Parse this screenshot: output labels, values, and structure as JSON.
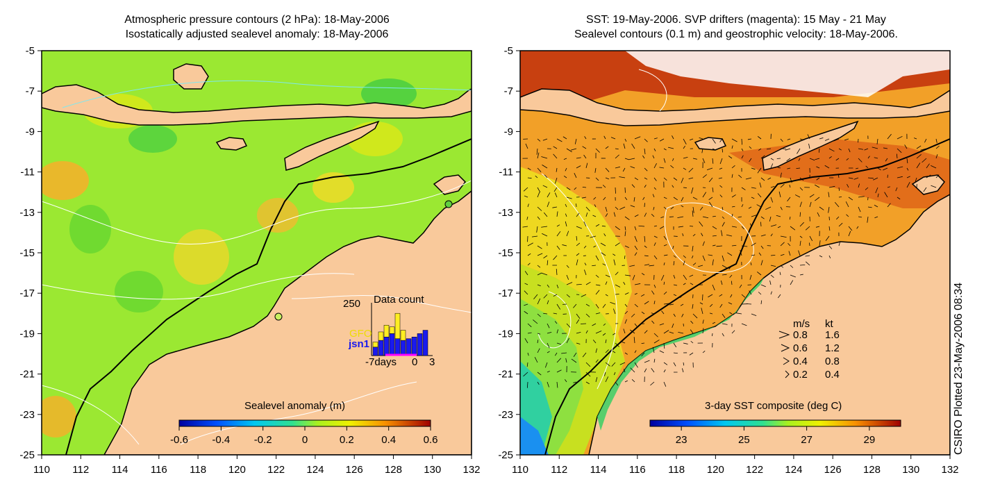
{
  "left_panel": {
    "title_line1": "Atmospheric pressure contours (2 hPa): 18-May-2006",
    "title_line2": "Isostatically adjusted sealevel anomaly: 18-May-2006",
    "x_ticks": [
      "110",
      "112",
      "114",
      "116",
      "118",
      "120",
      "122",
      "124",
      "126",
      "128",
      "130",
      "132"
    ],
    "y_ticks": [
      "-5",
      "-7",
      "-9",
      "-11",
      "-13",
      "-15",
      "-17",
      "-19",
      "-21",
      "-23",
      "-25"
    ],
    "colorbar": {
      "label": "Sealevel anomaly (m)",
      "ticks": [
        "-0.6",
        "-0.4",
        "-0.2",
        "0",
        "0.2",
        "0.4",
        "0.6"
      ],
      "range": [
        -0.6,
        0.6
      ]
    },
    "inset": {
      "title": "Data count",
      "ymax_label": "250",
      "series_gfo": "GFO",
      "series_jsn1": "jsn1",
      "x_label_left": "-7days",
      "x_label_zero": "0",
      "x_label_right": "3",
      "colors": {
        "gfo": "#ffee22",
        "jsn1": "#1a1aee"
      }
    }
  },
  "right_panel": {
    "title_line1": "SST: 19-May-2006. SVP drifters (magenta): 15 May - 21 May",
    "title_line2": "Sealevel contours (0.1 m) and geostrophic velocity: 18-May-2006.",
    "x_ticks": [
      "110",
      "112",
      "114",
      "116",
      "118",
      "120",
      "122",
      "124",
      "126",
      "128",
      "130",
      "132"
    ],
    "y_ticks": [
      "-5",
      "-7",
      "-9",
      "-11",
      "-13",
      "-15",
      "-17",
      "-19",
      "-21",
      "-23",
      "-25"
    ],
    "colorbar": {
      "label": "3-day SST composite (deg C)",
      "ticks": [
        "23",
        "25",
        "27",
        "29"
      ],
      "range": [
        22,
        30
      ]
    },
    "velocity_legend": {
      "header_ms": "m/s",
      "header_kt": "kt",
      "rows": [
        {
          "ms": "0.8",
          "kt": "1.6"
        },
        {
          "ms": "0.6",
          "kt": "1.2"
        },
        {
          "ms": "0.4",
          "kt": "0.8"
        },
        {
          "ms": "0.2",
          "kt": "0.4"
        }
      ]
    }
  },
  "credit": "CSIRO Plotted 23-May-2006 08:34",
  "colors": {
    "land": "#f9c99b",
    "sla_background": "#9be832",
    "sst_background": "#f2a028",
    "coastline": "#000000",
    "contour": "#ffffff"
  }
}
